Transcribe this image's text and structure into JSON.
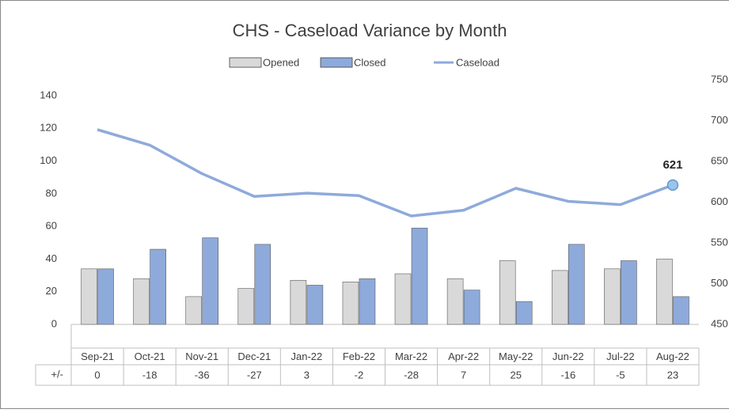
{
  "chart_data": {
    "type": "bar_line_table",
    "title": "CHS - Caseload Variance by Month",
    "categories": [
      "Sep-21",
      "Oct-21",
      "Nov-21",
      "Dec-21",
      "Jan-22",
      "Feb-22",
      "Mar-22",
      "Apr-22",
      "May-22",
      "Jun-22",
      "Jul-22",
      "Aug-22"
    ],
    "series": [
      {
        "name": "Opened",
        "color": "#d9d9d9",
        "values": [
          34,
          28,
          17,
          22,
          27,
          26,
          31,
          28,
          39,
          33,
          34,
          40
        ]
      },
      {
        "name": "Closed",
        "color": "#8eaadb",
        "values": [
          34,
          46,
          53,
          49,
          24,
          28,
          59,
          21,
          14,
          49,
          39,
          17
        ]
      },
      {
        "name": "Caseload",
        "color": "#8eaadb",
        "axis": "y2",
        "values": [
          689,
          670,
          635,
          607,
          611,
          608,
          583,
          590,
          617,
          601,
          597,
          621
        ]
      }
    ],
    "ylim": [
      0,
      140
    ],
    "yticks": [
      0,
      20,
      40,
      60,
      80,
      100,
      120,
      140
    ],
    "y2lim": [
      450,
      750
    ],
    "y2ticks": [
      450,
      500,
      550,
      600,
      650,
      700,
      750
    ],
    "table": {
      "label": "+/-",
      "values": [
        0,
        -18,
        -36,
        -27,
        3,
        -2,
        -28,
        7,
        25,
        -16,
        -5,
        23
      ]
    }
  }
}
